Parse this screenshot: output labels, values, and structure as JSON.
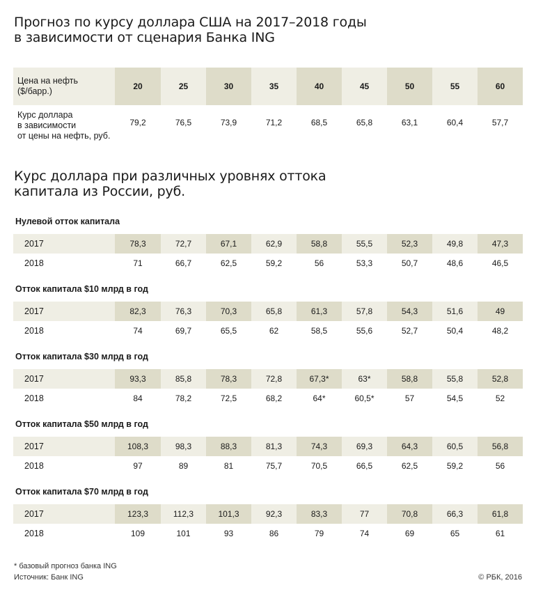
{
  "titles": {
    "main": [
      "Прогноз по курсу  доллара США на 2017–2018 годы",
      "в зависимости от сценария Банка ING"
    ],
    "second": [
      "Курс доллара при различных уровнях оттока",
      "капитала из России, руб."
    ]
  },
  "chart_data": [
    {
      "type": "table",
      "title": "Прогноз по курсу  доллара США на 2017–2018 годы в зависимости от сценария Банка ING",
      "header_label": [
        "Цена на нефть",
        "($/барр.)"
      ],
      "row_label": [
        "Курс доллара",
        "в зависимости",
        "от цены на нефть, руб."
      ],
      "oil_prices": [
        "20",
        "25",
        "30",
        "35",
        "40",
        "45",
        "50",
        "55",
        "60"
      ],
      "rates": [
        "79,2",
        "76,5",
        "73,9",
        "71,2",
        "68,5",
        "65,8",
        "63,1",
        "60,4",
        "57,7"
      ]
    },
    {
      "type": "table",
      "title": "Курс доллара при различных уровнях оттока капитала из России, руб.",
      "groups": [
        {
          "label": "Нулевой отток капитала",
          "rows": [
            {
              "year": "2017",
              "values": [
                "78,3",
                "72,7",
                "67,1",
                "62,9",
                "58,8",
                "55,5",
                "52,3",
                "49,8",
                "47,3"
              ]
            },
            {
              "year": "2018",
              "values": [
                "71",
                "66,7",
                "62,5",
                "59,2",
                "56",
                "53,3",
                "50,7",
                "48,6",
                "46,5"
              ]
            }
          ]
        },
        {
          "label": "Отток капитала $10 млрд  в год",
          "rows": [
            {
              "year": "2017",
              "values": [
                "82,3",
                "76,3",
                "70,3",
                "65,8",
                "61,3",
                "57,8",
                "54,3",
                "51,6",
                "49"
              ]
            },
            {
              "year": "2018",
              "values": [
                "74",
                "69,7",
                "65,5",
                "62",
                "58,5",
                "55,6",
                "52,7",
                "50,4",
                "48,2"
              ]
            }
          ]
        },
        {
          "label": "Отток капитала  $30 млрд в год",
          "rows": [
            {
              "year": "2017",
              "values": [
                "93,3",
                "85,8",
                "78,3",
                "72,8",
                "67,3*",
                "63*",
                "58,8",
                "55,8",
                "52,8"
              ]
            },
            {
              "year": "2018",
              "values": [
                "84",
                "78,2",
                "72,5",
                "68,2",
                "64*",
                "60,5*",
                "57",
                "54,5",
                "52"
              ]
            }
          ]
        },
        {
          "label": "Отток капитала  $50 млрд в год",
          "rows": [
            {
              "year": "2017",
              "values": [
                "108,3",
                "98,3",
                "88,3",
                "81,3",
                "74,3",
                "69,3",
                "64,3",
                "60,5",
                "56,8"
              ]
            },
            {
              "year": "2018",
              "values": [
                "97",
                "89",
                "81",
                "75,7",
                "70,5",
                "66,5",
                "62,5",
                "59,2",
                "56"
              ]
            }
          ]
        },
        {
          "label": "Отток капитала  $70 млрд в год",
          "rows": [
            {
              "year": "2017",
              "values": [
                "123,3",
                "112,3",
                "101,3",
                "92,3",
                "83,3",
                "77",
                "70,8",
                "66,3",
                "61,8"
              ]
            },
            {
              "year": "2018",
              "values": [
                "109",
                "101",
                "93",
                "86",
                "79",
                "74",
                "69",
                "65",
                "61"
              ]
            }
          ]
        }
      ]
    }
  ],
  "footer": {
    "note": "* базовый прогноз банка ING",
    "source": "Источник: Банк ING",
    "copyright": "© РБК, 2016"
  },
  "colors": {
    "light_band": "#efeee4",
    "dark_band": "#dedcc9",
    "text": "#1a1a1a"
  }
}
